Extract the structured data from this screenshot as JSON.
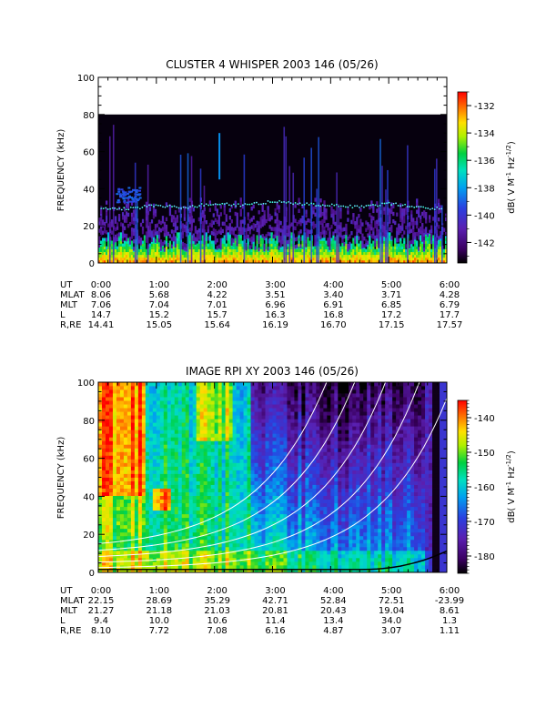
{
  "chart_data": [
    {
      "type": "heatmap",
      "title": "CLUSTER 4 WHISPER 2003 146 (05/26)",
      "ylabel": "FREQUENCY (kHz)",
      "ylim": [
        0,
        100
      ],
      "y_ticks": [
        "0",
        "20",
        "40",
        "60",
        "80",
        "100"
      ],
      "x_ticks": [
        "0:00",
        "1:00",
        "2:00",
        "3:00",
        "4:00",
        "5:00",
        "6:00"
      ],
      "xlim_hours": [
        0,
        6
      ],
      "data_upper_khz": 80,
      "colorbar": {
        "label": "dB( V M⁻¹ Hz⁻¹ᐟ²)",
        "label_parts": [
          "dB( V M",
          "-1",
          " Hz",
          "-1/2",
          ")"
        ],
        "ticks": [
          "-132",
          "-134",
          "-136",
          "-138",
          "-140",
          "-142"
        ],
        "tick_values": [
          -132,
          -134,
          -136,
          -138,
          -140,
          -142
        ],
        "range": [
          -143.5,
          -131
        ]
      },
      "ephemeris": {
        "rows": [
          {
            "label": "UT",
            "values": [
              "0:00",
              "1:00",
              "2:00",
              "3:00",
              "4:00",
              "5:00",
              "6:00"
            ]
          },
          {
            "label": "MLAT",
            "values": [
              "8.06",
              "5.68",
              "4.22",
              "3.51",
              "3.40",
              "3.71",
              "4.28"
            ]
          },
          {
            "label": "MLT",
            "values": [
              "7.06",
              "7.04",
              "7.01",
              "6.96",
              "6.91",
              "6.85",
              "6.79"
            ]
          },
          {
            "label": "L",
            "values": [
              "14.7",
              "15.2",
              "15.7",
              "16.3",
              "16.8",
              "17.2",
              "17.7"
            ]
          },
          {
            "label": "R,RE",
            "values": [
              "14.41",
              "15.05",
              "15.64",
              "16.19",
              "16.70",
              "17.15",
              "17.57"
            ]
          }
        ]
      },
      "overlay_trace_khz": [
        30,
        29,
        31,
        30,
        32,
        31,
        33,
        32,
        31,
        30,
        32,
        30,
        29
      ]
    },
    {
      "type": "heatmap",
      "title": "IMAGE RPI XY 2003 146 (05/26)",
      "ylabel": "FREQUENCY (kHz)",
      "ylim": [
        0,
        100
      ],
      "y_ticks": [
        "0",
        "20",
        "40",
        "60",
        "80",
        "100"
      ],
      "x_ticks": [
        "0:00",
        "1:00",
        "2:00",
        "3:00",
        "4:00",
        "5:00",
        "6:00"
      ],
      "xlim_hours": [
        0,
        6
      ],
      "colorbar": {
        "label": "dB( V M⁻¹ Hz⁻¹ᐟ²)",
        "label_parts": [
          "dB( V M",
          "-1",
          " Hz",
          "-1/2",
          ")"
        ],
        "ticks": [
          "-140",
          "-150",
          "-160",
          "-170",
          "-180"
        ],
        "tick_values": [
          -140,
          -150,
          -160,
          -170,
          -180
        ],
        "range": [
          -185,
          -135
        ]
      },
      "ephemeris": {
        "rows": [
          {
            "label": "UT",
            "values": [
              "0:00",
              "1:00",
              "2:00",
              "3:00",
              "4:00",
              "5:00",
              "6:00"
            ]
          },
          {
            "label": "MLAT",
            "values": [
              "22.15",
              "28.69",
              "35.29",
              "42.71",
              "52.84",
              "72.51",
              "-23.99"
            ]
          },
          {
            "label": "MLT",
            "values": [
              "21.27",
              "21.18",
              "21.03",
              "20.81",
              "20.43",
              "19.04",
              "8.61"
            ]
          },
          {
            "label": "L",
            "values": [
              "9.4",
              "10.0",
              "10.6",
              "11.4",
              "13.4",
              "34.0",
              "1.3"
            ]
          },
          {
            "label": "R,RE",
            "values": [
              "8.10",
              "7.72",
              "7.08",
              "6.16",
              "4.87",
              "3.07",
              "1.11"
            ]
          }
        ]
      }
    }
  ]
}
